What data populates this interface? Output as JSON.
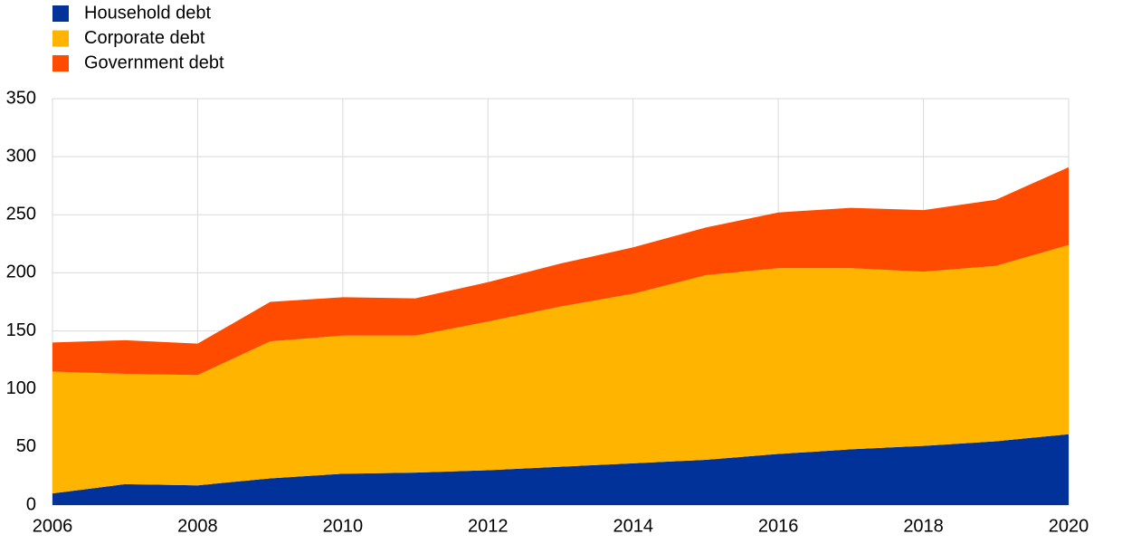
{
  "chart_data": {
    "type": "stacked-area",
    "x": [
      2006,
      2007,
      2008,
      2009,
      2010,
      2011,
      2012,
      2013,
      2014,
      2015,
      2016,
      2017,
      2018,
      2019,
      2020
    ],
    "series": [
      {
        "name": "Household debt",
        "color": "#003299",
        "values": [
          10,
          18,
          17,
          23,
          27,
          28,
          30,
          33,
          36,
          39,
          44,
          48,
          51,
          55,
          61
        ]
      },
      {
        "name": "Corporate debt",
        "color": "#ffb400",
        "values": [
          105,
          95,
          95,
          118,
          119,
          118,
          128,
          138,
          146,
          159,
          160,
          156,
          150,
          151,
          163
        ]
      },
      {
        "name": "Government debt",
        "color": "#ff4b00",
        "values": [
          25,
          29,
          27,
          34,
          33,
          32,
          34,
          37,
          40,
          41,
          48,
          52,
          53,
          57,
          67
        ]
      }
    ],
    "xlim": [
      2006,
      2020
    ],
    "xticks": [
      2006,
      2008,
      2010,
      2012,
      2014,
      2016,
      2018,
      2020
    ],
    "ylim": [
      0,
      350
    ],
    "yticks": [
      0,
      50,
      100,
      150,
      200,
      250,
      300,
      350
    ],
    "grid": true,
    "legend": "top-left"
  }
}
